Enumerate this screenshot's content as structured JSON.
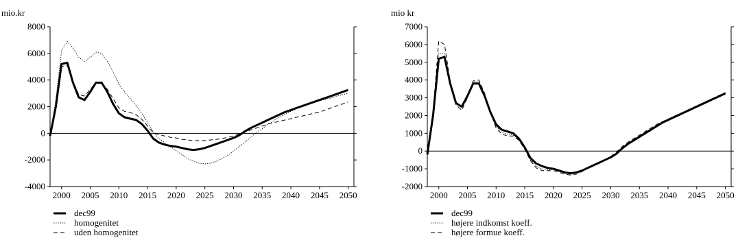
{
  "chart_data": [
    {
      "type": "line",
      "title": "",
      "ylabel": "mio.kr",
      "xlabel": "",
      "xlim": [
        1998,
        2051
      ],
      "ylim": [
        -4000,
        8000
      ],
      "xticks": [
        2000,
        2005,
        2010,
        2015,
        2020,
        2025,
        2030,
        2035,
        2040,
        2045,
        2050
      ],
      "yticks": [
        -4000,
        -2000,
        0,
        2000,
        4000,
        6000,
        8000
      ],
      "grid": false,
      "legend_position": "bottom-left",
      "series": [
        {
          "name": "dec99",
          "style": "solid-thick",
          "x": [
            1998,
            1999,
            2000,
            2001,
            2002,
            2003,
            2004,
            2005,
            2006,
            2007,
            2008,
            2009,
            2010,
            2011,
            2012,
            2013,
            2014,
            2015,
            2016,
            2017,
            2018,
            2019,
            2020,
            2021,
            2022,
            2023,
            2024,
            2025,
            2026,
            2027,
            2028,
            2029,
            2030,
            2031,
            2032,
            2033,
            2034,
            2035,
            2036,
            2037,
            2038,
            2039,
            2040,
            2041,
            2042,
            2043,
            2044,
            2045,
            2046,
            2047,
            2048,
            2049,
            2050
          ],
          "values": [
            -200,
            2000,
            5200,
            5300,
            3800,
            2700,
            2500,
            3100,
            3800,
            3800,
            3100,
            2200,
            1500,
            1200,
            1100,
            1000,
            700,
            200,
            -400,
            -700,
            -850,
            -950,
            -1000,
            -1100,
            -1200,
            -1250,
            -1200,
            -1100,
            -950,
            -800,
            -650,
            -500,
            -350,
            -150,
            150,
            400,
            600,
            800,
            1000,
            1200,
            1400,
            1600,
            1750,
            1900,
            2050,
            2200,
            2350,
            2500,
            2650,
            2800,
            2950,
            3100,
            3250
          ]
        },
        {
          "name": "homogenitet",
          "style": "dotted",
          "x": [
            1998,
            1999,
            2000,
            2001,
            2002,
            2003,
            2004,
            2005,
            2006,
            2007,
            2008,
            2009,
            2010,
            2011,
            2012,
            2013,
            2014,
            2015,
            2016,
            2017,
            2018,
            2019,
            2020,
            2021,
            2022,
            2023,
            2024,
            2025,
            2026,
            2027,
            2028,
            2029,
            2030,
            2031,
            2032,
            2033,
            2034,
            2035,
            2036,
            2037,
            2038,
            2039,
            2040,
            2041,
            2042,
            2043,
            2044,
            2045,
            2046,
            2047,
            2048,
            2049,
            2050
          ],
          "values": [
            -200,
            2500,
            6200,
            6900,
            6400,
            5700,
            5400,
            5700,
            6100,
            6000,
            5400,
            4600,
            3700,
            3100,
            2600,
            2100,
            1500,
            800,
            100,
            -400,
            -700,
            -1000,
            -1300,
            -1600,
            -1900,
            -2100,
            -2250,
            -2300,
            -2250,
            -2100,
            -1900,
            -1650,
            -1350,
            -1000,
            -650,
            -300,
            50,
            350,
            650,
            950,
            1200,
            1450,
            1650,
            1850,
            2000,
            2150,
            2300,
            2450,
            2550,
            2650,
            2800,
            2900,
            3000
          ]
        },
        {
          "name": "uden homogenitet",
          "style": "dashed",
          "x": [
            1998,
            1999,
            2000,
            2001,
            2002,
            2003,
            2004,
            2005,
            2006,
            2007,
            2008,
            2009,
            2010,
            2011,
            2012,
            2013,
            2014,
            2015,
            2016,
            2017,
            2018,
            2019,
            2020,
            2021,
            2022,
            2023,
            2024,
            2025,
            2026,
            2027,
            2028,
            2029,
            2030,
            2031,
            2032,
            2033,
            2034,
            2035,
            2036,
            2037,
            2038,
            2039,
            2040,
            2041,
            2042,
            2043,
            2044,
            2045,
            2046,
            2047,
            2048,
            2049,
            2050
          ],
          "values": [
            -200,
            2000,
            5000,
            5100,
            3900,
            2900,
            2800,
            3300,
            3800,
            3800,
            3300,
            2600,
            1900,
            1650,
            1550,
            1400,
            1050,
            550,
            50,
            -100,
            -200,
            -300,
            -350,
            -450,
            -500,
            -550,
            -550,
            -550,
            -500,
            -450,
            -400,
            -300,
            -200,
            -50,
            100,
            250,
            400,
            550,
            700,
            800,
            900,
            1000,
            1100,
            1200,
            1300,
            1400,
            1500,
            1600,
            1750,
            1900,
            2050,
            2200,
            2350
          ]
        }
      ]
    },
    {
      "type": "line",
      "title": "",
      "ylabel": "mio kr",
      "xlabel": "",
      "xlim": [
        1998,
        2051
      ],
      "ylim": [
        -2000,
        7000
      ],
      "xticks": [
        2000,
        2005,
        2010,
        2015,
        2020,
        2025,
        2030,
        2035,
        2040,
        2045,
        2050
      ],
      "yticks": [
        -2000,
        -1000,
        0,
        1000,
        2000,
        3000,
        4000,
        5000,
        6000,
        7000
      ],
      "grid": false,
      "legend_position": "bottom-left",
      "series": [
        {
          "name": "dec99",
          "style": "solid-thick",
          "x": [
            1998,
            1999,
            2000,
            2001,
            2002,
            2003,
            2004,
            2005,
            2006,
            2007,
            2008,
            2009,
            2010,
            2011,
            2012,
            2013,
            2014,
            2015,
            2016,
            2017,
            2018,
            2019,
            2020,
            2021,
            2022,
            2023,
            2024,
            2025,
            2026,
            2027,
            2028,
            2029,
            2030,
            2031,
            2032,
            2033,
            2034,
            2035,
            2036,
            2037,
            2038,
            2039,
            2040,
            2041,
            2042,
            2043,
            2044,
            2045,
            2046,
            2047,
            2048,
            2049,
            2050
          ],
          "values": [
            -200,
            2000,
            5200,
            5300,
            3800,
            2700,
            2500,
            3100,
            3800,
            3800,
            3100,
            2200,
            1500,
            1200,
            1100,
            1000,
            700,
            200,
            -400,
            -700,
            -850,
            -950,
            -1000,
            -1100,
            -1200,
            -1250,
            -1200,
            -1100,
            -950,
            -800,
            -650,
            -500,
            -350,
            -150,
            150,
            400,
            600,
            800,
            1000,
            1200,
            1400,
            1600,
            1750,
            1900,
            2050,
            2200,
            2350,
            2500,
            2650,
            2800,
            2950,
            3100,
            3250
          ]
        },
        {
          "name": "højere indkomst koeff.",
          "style": "dotted",
          "x": [
            1998,
            1999,
            2000,
            2001,
            2002,
            2003,
            2004,
            2005,
            2006,
            2007,
            2008,
            2009,
            2010,
            2011,
            2012,
            2013,
            2014,
            2015,
            2016,
            2017,
            2018,
            2019,
            2020,
            2021,
            2022,
            2023,
            2024,
            2025,
            2026,
            2027,
            2028,
            2029,
            2030,
            2031,
            2032,
            2033,
            2034,
            2035,
            2036,
            2037,
            2038,
            2039,
            2040,
            2041,
            2042,
            2043,
            2044,
            2045,
            2046,
            2047,
            2048,
            2049,
            2050
          ],
          "values": [
            -200,
            2100,
            5500,
            5500,
            3900,
            2700,
            2450,
            3100,
            3900,
            3900,
            3150,
            2150,
            1400,
            1050,
            950,
            900,
            650,
            150,
            -500,
            -850,
            -1000,
            -1050,
            -1050,
            -1150,
            -1250,
            -1300,
            -1250,
            -1100,
            -950,
            -800,
            -650,
            -500,
            -350,
            -100,
            200,
            450,
            650,
            850,
            1050,
            1250,
            1450,
            1650,
            1800,
            1950,
            2100,
            2250,
            2400,
            2550,
            2700,
            2850,
            3000,
            3150,
            3300
          ]
        },
        {
          "name": "højere formue koeff.",
          "style": "dashed",
          "x": [
            1998,
            1999,
            2000,
            2001,
            2002,
            2003,
            2004,
            2005,
            2006,
            2007,
            2008,
            2009,
            2010,
            2011,
            2012,
            2013,
            2014,
            2015,
            2016,
            2017,
            2018,
            2019,
            2020,
            2021,
            2022,
            2023,
            2024,
            2025,
            2026,
            2027,
            2028,
            2029,
            2030,
            2031,
            2032,
            2033,
            2034,
            2035,
            2036,
            2037,
            2038,
            2039,
            2040,
            2041,
            2042,
            2043,
            2044,
            2045,
            2046,
            2047,
            2048,
            2049,
            2050
          ],
          "values": [
            -200,
            2200,
            6200,
            6000,
            3900,
            2600,
            2300,
            3000,
            3950,
            4000,
            3250,
            2200,
            1300,
            950,
            850,
            850,
            600,
            100,
            -550,
            -950,
            -1100,
            -1100,
            -1100,
            -1200,
            -1300,
            -1350,
            -1300,
            -1150,
            -950,
            -800,
            -650,
            -500,
            -300,
            -50,
            250,
            500,
            700,
            900,
            1100,
            1300,
            1500,
            1650,
            1800,
            1950,
            2100,
            2250,
            2400,
            2550,
            2700,
            2850,
            3000,
            3150,
            3300
          ]
        }
      ]
    }
  ]
}
